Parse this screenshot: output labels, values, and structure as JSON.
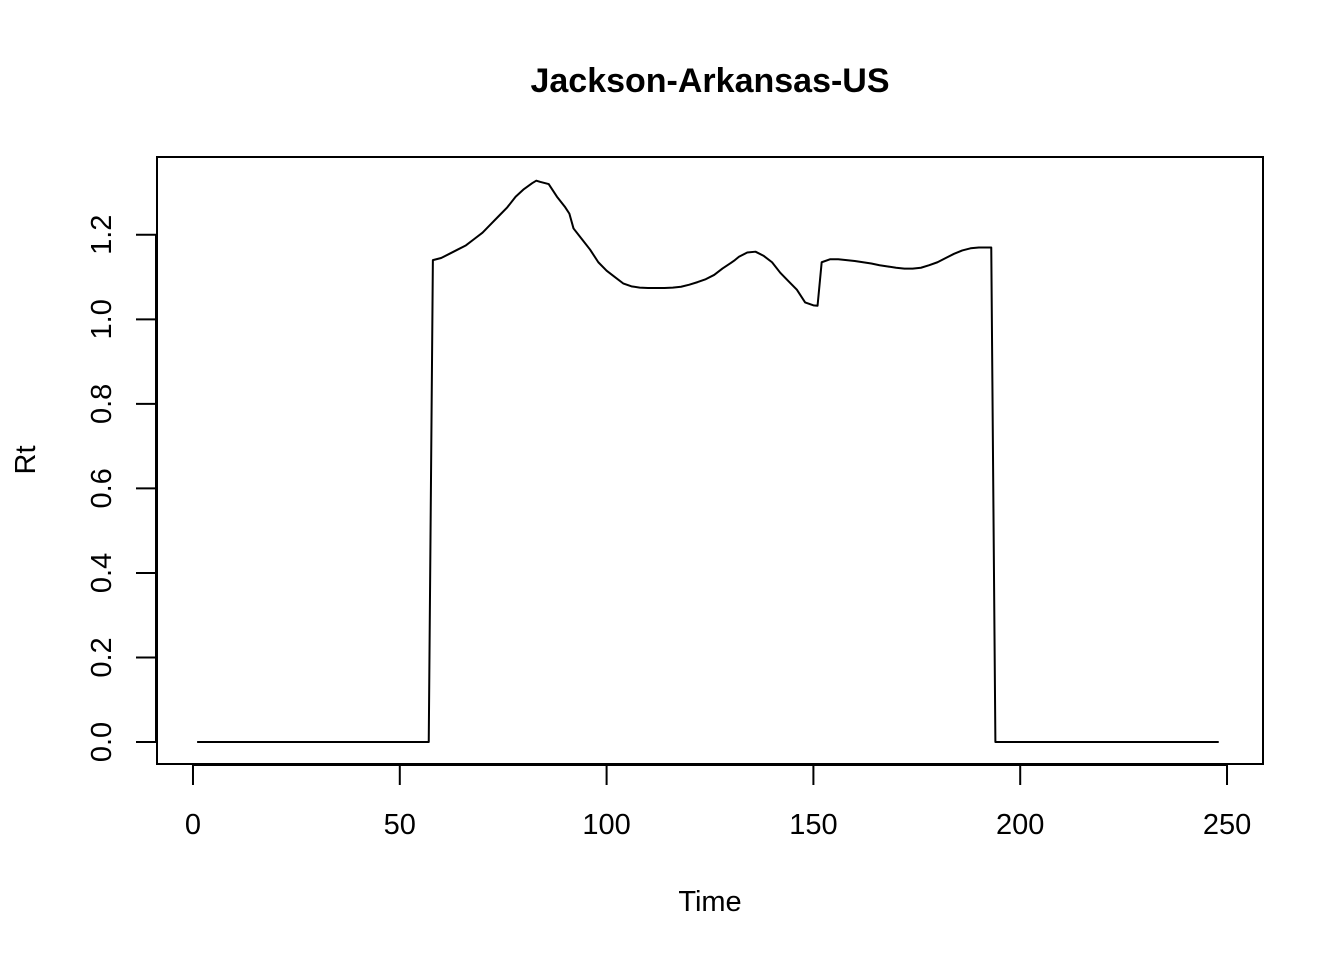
{
  "chart_data": {
    "type": "line",
    "title": "Jackson-Arkansas-US",
    "xlabel": "Time",
    "ylabel": "Rt",
    "xlim": [
      -8.7,
      258.7
    ],
    "ylim": [
      -0.052,
      1.384
    ],
    "xticks": [
      0,
      50,
      100,
      150,
      200,
      250
    ],
    "yticks": [
      0.0,
      0.2,
      0.4,
      0.6,
      0.8,
      1.0,
      1.2
    ],
    "xtick_labels": [
      "0",
      "50",
      "100",
      "150",
      "200",
      "250"
    ],
    "ytick_labels": [
      "0.0",
      "0.2",
      "0.4",
      "0.6",
      "0.8",
      "1.0",
      "1.2"
    ],
    "grid": false,
    "series": [
      {
        "color": "#000000",
        "x": [
          1,
          57,
          58,
          60,
          62,
          64,
          66,
          68,
          70,
          72,
          74,
          76,
          78,
          80,
          82,
          83,
          84,
          86,
          88,
          90,
          91,
          92,
          94,
          96,
          98,
          100,
          102,
          104,
          106,
          108,
          110,
          112,
          114,
          116,
          118,
          120,
          122,
          124,
          126,
          128,
          130,
          131,
          132,
          134,
          136,
          138,
          140,
          142,
          144,
          146,
          148,
          150,
          151,
          152,
          154,
          156,
          158,
          160,
          162,
          164,
          166,
          168,
          170,
          172,
          174,
          176,
          178,
          180,
          182,
          184,
          186,
          188,
          190,
          192,
          193,
          194,
          196,
          200,
          248
        ],
        "y": [
          0.0,
          0.0,
          1.14,
          1.145,
          1.155,
          1.165,
          1.175,
          1.19,
          1.205,
          1.225,
          1.245,
          1.265,
          1.29,
          1.308,
          1.322,
          1.328,
          1.325,
          1.32,
          1.29,
          1.265,
          1.25,
          1.215,
          1.19,
          1.165,
          1.135,
          1.115,
          1.1,
          1.085,
          1.078,
          1.075,
          1.074,
          1.074,
          1.074,
          1.075,
          1.077,
          1.082,
          1.088,
          1.095,
          1.105,
          1.12,
          1.133,
          1.14,
          1.148,
          1.158,
          1.16,
          1.15,
          1.135,
          1.11,
          1.09,
          1.07,
          1.04,
          1.033,
          1.032,
          1.135,
          1.142,
          1.142,
          1.14,
          1.138,
          1.135,
          1.132,
          1.128,
          1.125,
          1.122,
          1.12,
          1.12,
          1.122,
          1.128,
          1.135,
          1.145,
          1.155,
          1.163,
          1.168,
          1.17,
          1.17,
          1.17,
          0.0,
          0.0,
          0.0,
          0.0
        ]
      }
    ]
  }
}
